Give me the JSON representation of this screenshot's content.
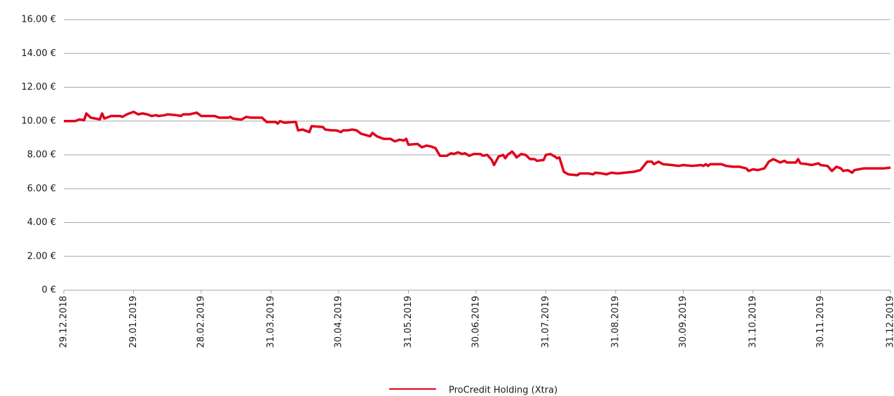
{
  "chart_data": {
    "type": "line",
    "x": [
      "29.12.2018",
      "03.01.2019",
      "05.01.2019",
      "07.01.2019",
      "08.01.2019",
      "10.01.2019",
      "12.01.2019",
      "14.01.2019",
      "15.01.2019",
      "16.01.2019",
      "19.01.2019",
      "23.01.2019",
      "24.01.2019",
      "26.01.2019",
      "29.01.2019",
      "31.01.2019",
      "02.02.2019",
      "04.02.2019",
      "06.02.2019",
      "08.02.2019",
      "09.02.2019",
      "12.02.2019",
      "13.02.2019",
      "17.02.2019",
      "19.02.2019",
      "20.02.2019",
      "23.02.2019",
      "26.02.2019",
      "28.02.2019",
      "06.03.2019",
      "08.03.2019",
      "12.03.2019",
      "13.03.2019",
      "14.03.2019",
      "17.03.2019",
      "18.03.2019",
      "20.03.2019",
      "22.03.2019",
      "27.03.2019",
      "29.03.2019",
      "02.04.2019",
      "03.04.2019",
      "04.04.2019",
      "06.04.2019",
      "10.04.2019",
      "11.04.2019",
      "12.04.2019",
      "14.04.2019",
      "17.04.2019",
      "18.04.2019",
      "23.04.2019",
      "24.04.2019",
      "27.04.2019",
      "29.04.2019",
      "01.05.2019",
      "02.05.2019",
      "04.05.2019",
      "06.05.2019",
      "08.05.2019",
      "10.05.2019",
      "14.05.2019",
      "15.05.2019",
      "17.05.2019",
      "20.05.2019",
      "23.05.2019",
      "25.05.2019",
      "27.05.2019",
      "29.05.2019",
      "30.05.2019",
      "31.05.2019",
      "04.06.2019",
      "06.06.2019",
      "08.06.2019",
      "10.06.2019",
      "12.06.2019",
      "14.06.2019",
      "17.06.2019",
      "19.06.2019",
      "20.06.2019",
      "22.06.2019",
      "24.06.2019",
      "25.06.2019",
      "27.06.2019",
      "29.06.2019",
      "02.07.2019",
      "03.07.2019",
      "05.07.2019",
      "07.07.2019",
      "08.07.2019",
      "10.07.2019",
      "12.07.2019",
      "13.07.2019",
      "14.07.2019",
      "16.07.2019",
      "17.07.2019",
      "18.07.2019",
      "20.07.2019",
      "22.07.2019",
      "24.07.2019",
      "26.07.2019",
      "27.07.2019",
      "30.07.2019",
      "31.07.2019",
      "02.08.2019",
      "04.08.2019",
      "05.08.2019",
      "06.08.2019",
      "08.08.2019",
      "10.08.2019",
      "14.08.2019",
      "15.08.2019",
      "19.08.2019",
      "21.08.2019",
      "22.08.2019",
      "25.08.2019",
      "27.08.2019",
      "29.08.2019",
      "01.09.2019",
      "04.09.2019",
      "08.09.2019",
      "11.09.2019",
      "14.09.2019",
      "16.09.2019",
      "17.09.2019",
      "19.09.2019",
      "21.09.2019",
      "25.09.2019",
      "28.09.2019",
      "30.09.2019",
      "04.10.2019",
      "08.10.2019",
      "09.10.2019",
      "10.10.2019",
      "11.10.2019",
      "12.10.2019",
      "17.10.2019",
      "19.10.2019",
      "22.10.2019",
      "25.10.2019",
      "28.10.2019",
      "29.10.2019",
      "31.10.2019",
      "02.11.2019",
      "05.11.2019",
      "07.11.2019",
      "09.11.2019",
      "12.11.2019",
      "14.11.2019",
      "15.11.2019",
      "17.11.2019",
      "19.11.2019",
      "20.11.2019",
      "21.11.2019",
      "24.11.2019",
      "26.11.2019",
      "29.11.2019",
      "30.11.2019",
      "03.12.2019",
      "05.12.2019",
      "07.12.2019",
      "09.12.2019",
      "10.12.2019",
      "12.12.2019",
      "14.12.2019",
      "15.12.2019",
      "19.12.2019",
      "22.12.2019",
      "28.12.2019",
      "31.12.2019"
    ],
    "series": [
      {
        "name": "ProCredit Holding (Xtra)",
        "color": "#e2001a",
        "values": [
          10.0,
          10.0,
          10.1,
          10.05,
          10.45,
          10.2,
          10.15,
          10.1,
          10.45,
          10.15,
          10.3,
          10.3,
          10.25,
          10.4,
          10.55,
          10.4,
          10.45,
          10.4,
          10.3,
          10.35,
          10.3,
          10.35,
          10.4,
          10.35,
          10.3,
          10.4,
          10.4,
          10.5,
          10.3,
          10.3,
          10.2,
          10.2,
          10.25,
          10.15,
          10.1,
          10.1,
          10.25,
          10.2,
          10.2,
          9.95,
          9.95,
          9.85,
          10.0,
          9.9,
          9.95,
          9.95,
          9.45,
          9.5,
          9.35,
          9.7,
          9.65,
          9.5,
          9.45,
          9.45,
          9.35,
          9.45,
          9.45,
          9.5,
          9.45,
          9.25,
          9.1,
          9.3,
          9.1,
          8.95,
          8.95,
          8.8,
          8.9,
          8.85,
          8.95,
          8.6,
          8.65,
          8.45,
          8.55,
          8.5,
          8.4,
          7.95,
          7.95,
          8.1,
          8.05,
          8.15,
          8.05,
          8.1,
          7.95,
          8.05,
          8.05,
          7.95,
          8.0,
          7.7,
          7.4,
          7.9,
          8.0,
          7.8,
          8.0,
          8.2,
          8.05,
          7.85,
          8.05,
          8.0,
          7.75,
          7.75,
          7.65,
          7.7,
          8.0,
          8.05,
          7.9,
          7.8,
          7.85,
          7.0,
          6.85,
          6.8,
          6.9,
          6.9,
          6.85,
          6.95,
          6.9,
          6.85,
          6.95,
          6.9,
          6.95,
          7.0,
          7.1,
          7.6,
          7.6,
          7.45,
          7.6,
          7.45,
          7.4,
          7.35,
          7.4,
          7.35,
          7.4,
          7.35,
          7.45,
          7.35,
          7.45,
          7.45,
          7.35,
          7.3,
          7.3,
          7.2,
          7.05,
          7.15,
          7.1,
          7.2,
          7.6,
          7.75,
          7.55,
          7.65,
          7.55,
          7.55,
          7.55,
          7.75,
          7.5,
          7.45,
          7.4,
          7.5,
          7.4,
          7.35,
          7.05,
          7.3,
          7.2,
          7.05,
          7.1,
          6.95,
          7.1,
          7.2,
          7.2,
          7.2,
          7.25
        ]
      }
    ],
    "xlim": [
      "29.12.2018",
      "31.12.2019"
    ],
    "xticks": [
      "29.12.2018",
      "29.01.2019",
      "28.02.2019",
      "31.03.2019",
      "30.04.2019",
      "31.05.2019",
      "30.06.2019",
      "31.07.2019",
      "31.08.2019",
      "30.09.2019",
      "31.10.2019",
      "30.11.2019",
      "31.12.2019"
    ],
    "ylim": [
      0,
      16
    ],
    "yticks": [
      {
        "value": 0,
        "label": "0 €"
      },
      {
        "value": 2,
        "label": "2.00 €"
      },
      {
        "value": 4,
        "label": "4.00 €"
      },
      {
        "value": 6,
        "label": "6.00 €"
      },
      {
        "value": 8,
        "label": "8.00 €"
      },
      {
        "value": 10,
        "label": "10.00 €"
      },
      {
        "value": 12,
        "label": "12.00 €"
      },
      {
        "value": 14,
        "label": "14.00 €"
      },
      {
        "value": 16,
        "label": "16.00 €"
      }
    ],
    "grid": true,
    "legend": "bottom"
  }
}
